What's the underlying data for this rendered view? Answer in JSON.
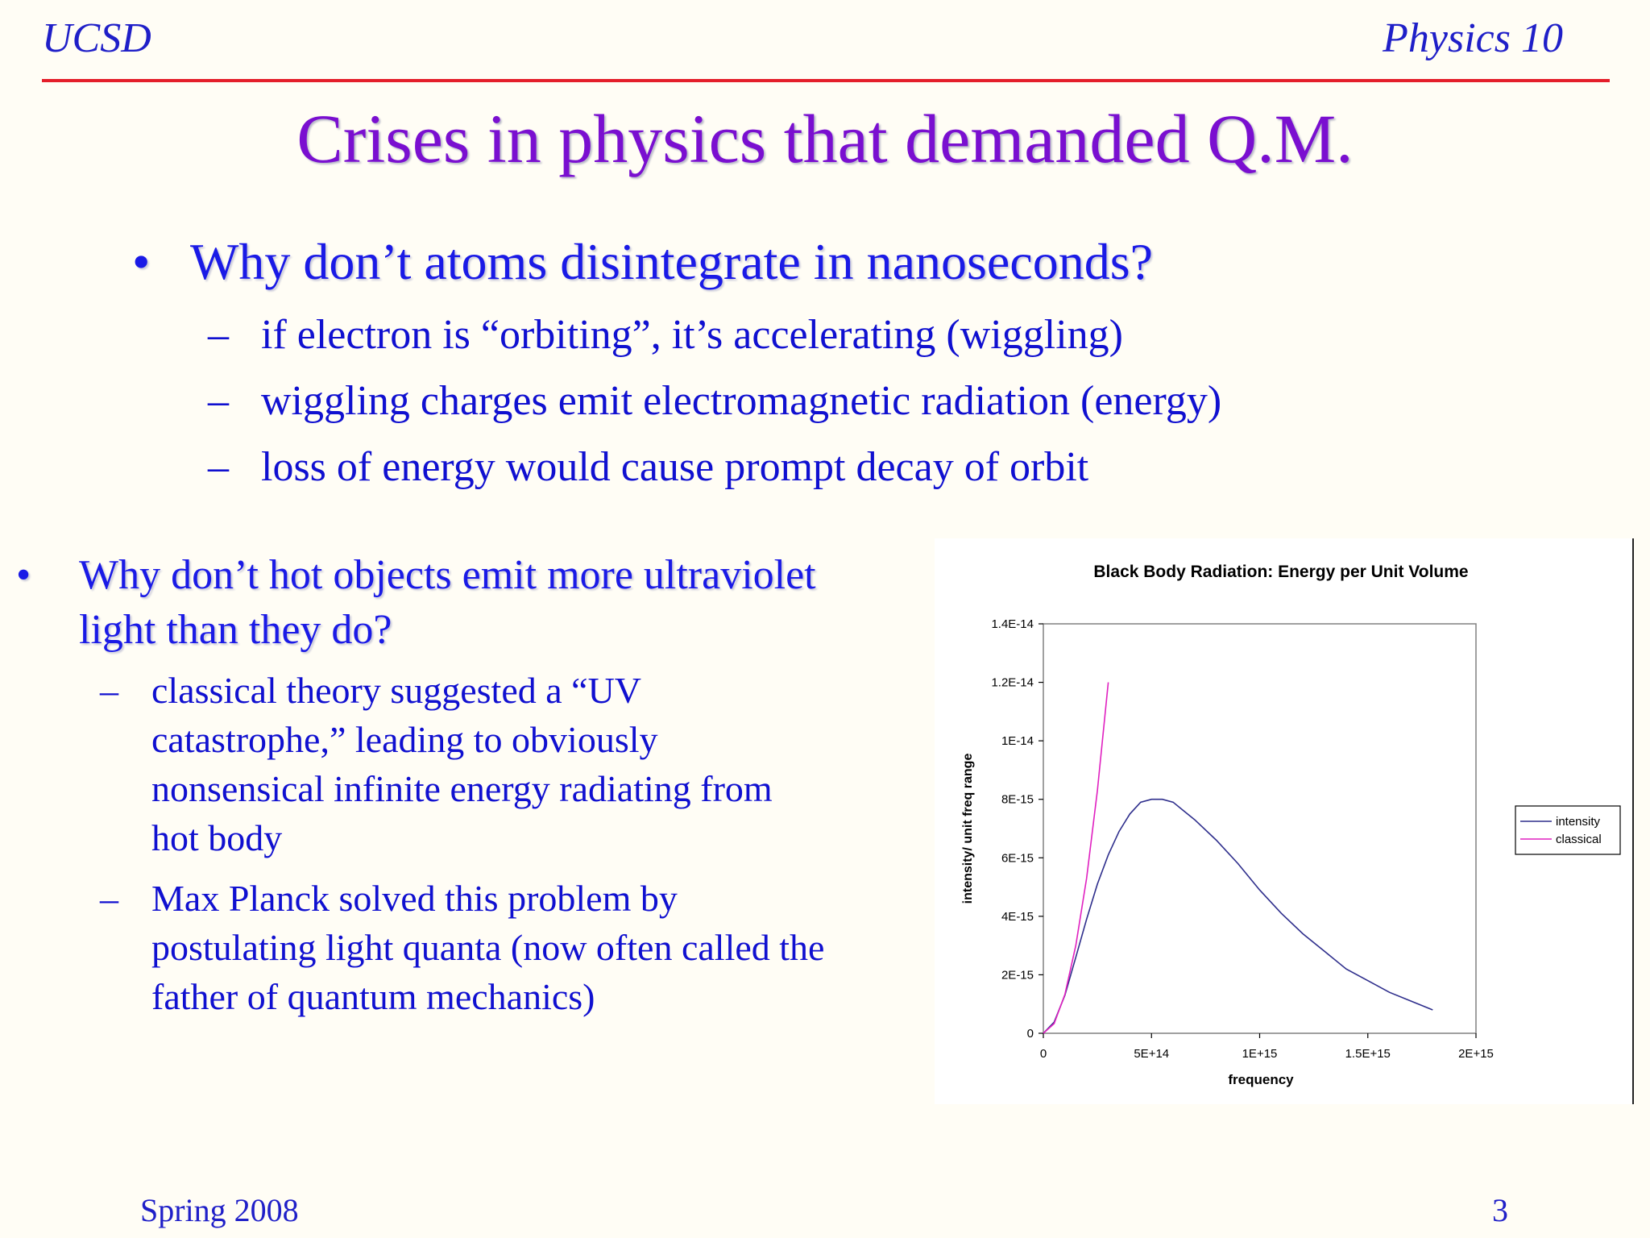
{
  "header": {
    "left": "UCSD",
    "right": "Physics 10"
  },
  "title": "Crises in physics that demanded Q.M.",
  "bullet1": {
    "marker": "•",
    "text": "Why don’t atoms disintegrate in nanoseconds?",
    "subs": [
      "if electron is “orbiting”, it’s accelerating (wiggling)",
      "wiggling charges emit electromagnetic radiation (energy)",
      "loss of energy would cause prompt decay of orbit"
    ]
  },
  "bullet2": {
    "marker": "•",
    "lines": [
      "Why don’t hot objects emit more ultraviolet",
      "light than they do?"
    ],
    "subs": [
      {
        "lines": [
          "classical theory suggested a “UV",
          "catastrophe,” leading to obviously",
          "nonsensical infinite energy radiating from",
          "hot body"
        ]
      },
      {
        "lines": [
          "Max Planck solved this problem by",
          "postulating light quanta (now often called the",
          "father of quantum mechanics)"
        ]
      }
    ]
  },
  "dash": "–",
  "chart_data": {
    "type": "line",
    "title": "Black Body Radiation: Energy per Unit Volume",
    "xlabel": "frequency",
    "ylabel": "intensity/ unit freq range",
    "xlim": [
      0,
      2000000000000000.0
    ],
    "ylim": [
      0,
      1.4e-14
    ],
    "xticks": [
      0,
      500000000000000.0,
      1000000000000000.0,
      1500000000000000.0,
      2000000000000000.0
    ],
    "xtick_labels": [
      "0",
      "5E+14",
      "1E+15",
      "1.5E+15",
      "2E+15"
    ],
    "yticks": [
      0,
      2e-15,
      4e-15,
      6e-15,
      8e-15,
      1e-14,
      1.2e-14,
      1.4e-14
    ],
    "ytick_labels": [
      "0",
      "2E-15",
      "4E-15",
      "6E-15",
      "8E-15",
      "1E-14",
      "1.2E-14",
      "1.4E-14"
    ],
    "grid": false,
    "legend": "right",
    "series": [
      {
        "name": "intensity",
        "color": "#2E2E8C",
        "x": [
          0,
          50000000000000.0,
          100000000000000.0,
          150000000000000.0,
          200000000000000.0,
          250000000000000.0,
          300000000000000.0,
          350000000000000.0,
          400000000000000.0,
          450000000000000.0,
          500000000000000.0,
          550000000000000.0,
          600000000000000.0,
          650000000000000.0,
          700000000000000.0,
          800000000000000.0,
          900000000000000.0,
          1000000000000000.0,
          1100000000000000.0,
          1200000000000000.0,
          1300000000000000.0,
          1400000000000000.0,
          1500000000000000.0,
          1600000000000000.0,
          1700000000000000.0,
          1800000000000000.0
        ],
        "y": [
          0,
          3.8e-16,
          1.3e-15,
          2.6e-15,
          3.9e-15,
          5.1e-15,
          6.1e-15,
          6.9e-15,
          7.5e-15,
          7.9e-15,
          8e-15,
          8e-15,
          7.9e-15,
          7.6e-15,
          7.3e-15,
          6.6e-15,
          5.8e-15,
          4.9e-15,
          4.1e-15,
          3.4e-15,
          2.8e-15,
          2.2e-15,
          1.8e-15,
          1.4e-15,
          1.1e-15,
          8e-16
        ]
      },
      {
        "name": "classical",
        "color": "#E020C0",
        "x": [
          0,
          50000000000000.0,
          100000000000000.0,
          150000000000000.0,
          200000000000000.0,
          250000000000000.0,
          300000000000000.0
        ],
        "y": [
          0,
          3.3e-16,
          1.33e-15,
          3e-15,
          5.3e-15,
          8.3e-15,
          1.2e-14
        ]
      }
    ]
  },
  "footer": {
    "left": "Spring 2008",
    "right": "3"
  }
}
